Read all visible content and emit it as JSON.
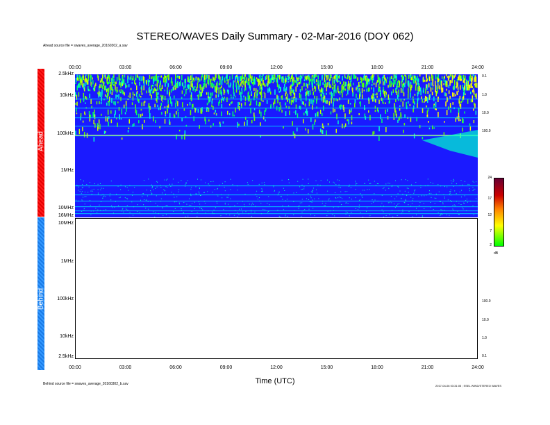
{
  "chart_data": {
    "type": "heatmap",
    "title": "STEREO/WAVES Daily Summary - 02-Mar-2016 (DOY 062)",
    "xlabel": "Time (UTC)",
    "x_ticks": [
      "00:00",
      "03:00",
      "06:00",
      "09:00",
      "12:00",
      "15:00",
      "18:00",
      "21:00",
      "24:00"
    ],
    "panels": [
      {
        "name": "Ahead",
        "source_label": "Ahead source file = swaves_average_20160302_a.sav",
        "y_ticks": [
          "2.5kHz",
          "10kHz",
          "100kHz",
          "1MHz",
          "10MHz",
          "16MHz"
        ],
        "right_ticks": [
          "0.1",
          "1.0",
          "10.0",
          "100.0"
        ],
        "has_data": true
      },
      {
        "name": "Behind",
        "source_label": "Behind source file = swaves_average_20160302_b.sav",
        "y_ticks": [
          "10MHz",
          "1MHz",
          "100kHz",
          "10kHz",
          "2.5kHz"
        ],
        "right_ticks": [
          "100.0",
          "10.0",
          "1.0",
          "0.1"
        ],
        "has_data": false
      }
    ],
    "colorbar": {
      "ticks": [
        "24",
        "17",
        "12",
        "7",
        "2"
      ],
      "unit": "dB",
      "range": [
        2,
        24
      ],
      "colors": [
        "#00ff00",
        "#ffff00",
        "#ff8000",
        "#cc0000",
        "#660033"
      ]
    },
    "background_color": "#1a1aff"
  },
  "credit": "2017-04-06 03:31:05 ; SSEL WIND/STEREO WAVES"
}
